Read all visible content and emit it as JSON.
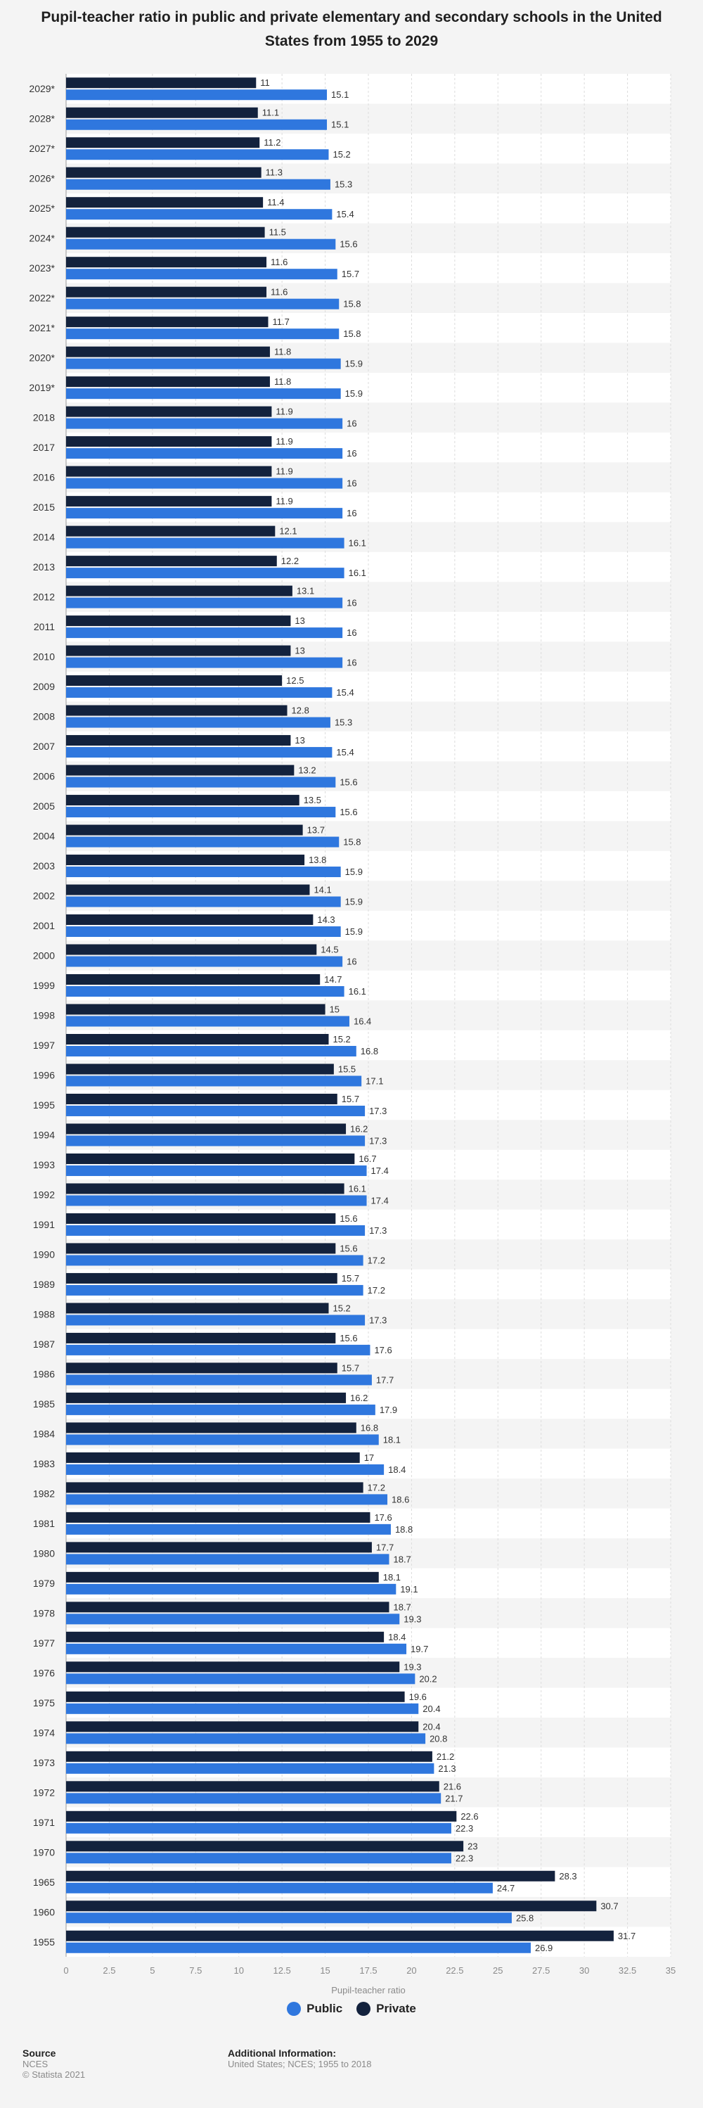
{
  "chart_data": {
    "type": "bar",
    "orientation": "horizontal",
    "title": "Pupil-teacher ratio in public and private elementary and secondary schools in the United States from 1955 to 2029",
    "xlabel": "Pupil-teacher ratio",
    "ylabel": "",
    "xlim": [
      0,
      35
    ],
    "x_ticks": [
      "0",
      "2.5",
      "5",
      "7.5",
      "10",
      "12.5",
      "15",
      "17.5",
      "20",
      "22.5",
      "25",
      "27.5",
      "30",
      "32.5",
      "35"
    ],
    "grid": true,
    "legend_position": "bottom",
    "categories": [
      "2029*",
      "2028*",
      "2027*",
      "2026*",
      "2025*",
      "2024*",
      "2023*",
      "2022*",
      "2021*",
      "2020*",
      "2019*",
      "2018",
      "2017",
      "2016",
      "2015",
      "2014",
      "2013",
      "2012",
      "2011",
      "2010",
      "2009",
      "2008",
      "2007",
      "2006",
      "2005",
      "2004",
      "2003",
      "2002",
      "2001",
      "2000",
      "1999",
      "1998",
      "1997",
      "1996",
      "1995",
      "1994",
      "1993",
      "1992",
      "1991",
      "1990",
      "1989",
      "1988",
      "1987",
      "1986",
      "1985",
      "1984",
      "1983",
      "1982",
      "1981",
      "1980",
      "1979",
      "1978",
      "1977",
      "1976",
      "1975",
      "1974",
      "1973",
      "1972",
      "1971",
      "1970",
      "1965",
      "1960",
      "1955"
    ],
    "series": [
      {
        "name": "Public",
        "color": "#2f77de",
        "values": [
          15.1,
          15.1,
          15.2,
          15.3,
          15.4,
          15.6,
          15.7,
          15.8,
          15.8,
          15.9,
          15.9,
          16,
          16,
          16,
          16,
          16.1,
          16.1,
          16,
          16,
          16,
          15.4,
          15.3,
          15.4,
          15.6,
          15.6,
          15.8,
          15.9,
          15.9,
          15.9,
          16,
          16.1,
          16.4,
          16.8,
          17.1,
          17.3,
          17.3,
          17.4,
          17.4,
          17.3,
          17.2,
          17.2,
          17.3,
          17.6,
          17.7,
          17.9,
          18.1,
          18.4,
          18.6,
          18.8,
          18.7,
          19.1,
          19.3,
          19.7,
          20.2,
          20.4,
          20.8,
          21.3,
          21.7,
          22.3,
          22.3,
          24.7,
          25.8,
          26.9
        ]
      },
      {
        "name": "Private",
        "color": "#13223d",
        "values": [
          11,
          11.1,
          11.2,
          11.3,
          11.4,
          11.5,
          11.6,
          11.6,
          11.7,
          11.8,
          11.8,
          11.9,
          11.9,
          11.9,
          11.9,
          12.1,
          12.2,
          13.1,
          13,
          13,
          12.5,
          12.8,
          13,
          13.2,
          13.5,
          13.7,
          13.8,
          14.1,
          14.3,
          14.5,
          14.7,
          15,
          15.2,
          15.5,
          15.7,
          16.2,
          16.7,
          16.1,
          15.6,
          15.6,
          15.7,
          15.2,
          15.6,
          15.7,
          16.2,
          16.8,
          17,
          17.2,
          17.6,
          17.7,
          18.1,
          18.7,
          18.4,
          19.3,
          19.6,
          20.4,
          21.2,
          21.6,
          22.6,
          23,
          28.3,
          30.7,
          31.7
        ]
      }
    ]
  },
  "legend": {
    "public_label": "Public",
    "private_label": "Private"
  },
  "footer": {
    "source_heading": "Source",
    "source_name": "NCES",
    "copyright": "© Statista 2021",
    "info_heading": "Additional Information:",
    "info_text": "United States; NCES; 1955 to 2018"
  }
}
